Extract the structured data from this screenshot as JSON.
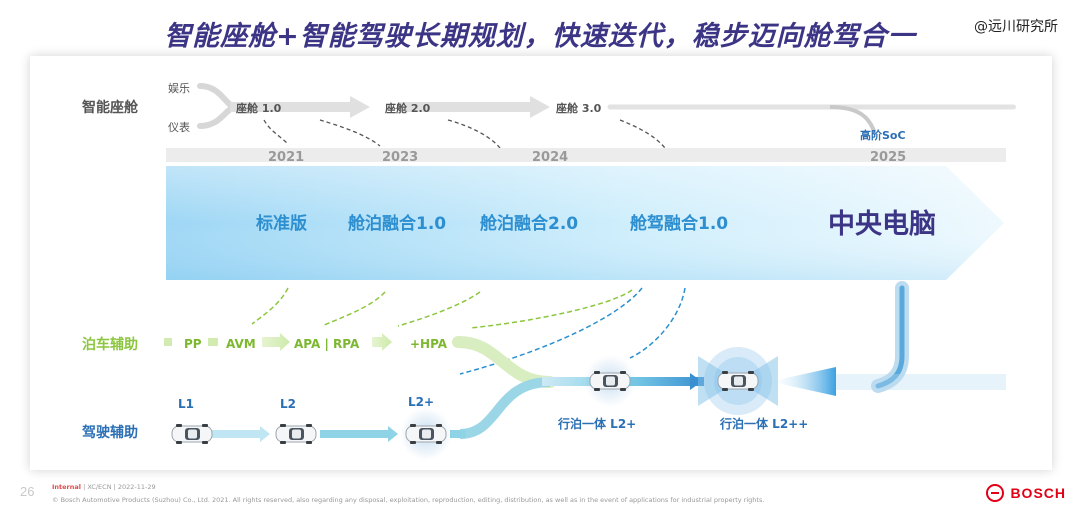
{
  "title": "智能座舱+智能驾驶长期规划，快速迭代，稳步迈向舱驾合一",
  "brand": "@远川研究所",
  "page_number": "26",
  "footer": {
    "classification": "Internal",
    "meta": " | XC/ECN | 2022-11-29",
    "copyright": "© Bosch Automotive Products (Suzhou) Co., Ltd.  2021. All rights reserved, also regarding any disposal, exploitation, reproduction, editing, distribution, as well as in the event of applications for industrial property rights.",
    "logo_text": "BOSCH"
  },
  "colors": {
    "title": "#3c3585",
    "cockpit_label": "#555555",
    "parking": "#8cc63f",
    "driving": "#2b6fb5",
    "band_text": "#2d8fd0",
    "central": "#3c3585"
  },
  "cockpit": {
    "row_label": "智能座舱",
    "inputs": [
      "娱乐",
      "仪表"
    ],
    "stages": [
      "座舱 1.0",
      "座舱 2.0",
      "座舱 3.0"
    ],
    "end_label": "高阶SoC"
  },
  "timeline": {
    "years": [
      "2021",
      "2023",
      "2024",
      "2025"
    ]
  },
  "band": {
    "stages": [
      "标准版",
      "舱泊融合1.0",
      "舱泊融合2.0",
      "舱驾融合1.0"
    ],
    "final": "中央电脑"
  },
  "parking": {
    "row_label": "泊车辅助",
    "stages": [
      "PP",
      "AVM",
      "APA | RPA",
      "+HPA"
    ]
  },
  "driving": {
    "row_label": "驾驶辅助",
    "levels": [
      "L1",
      "L2",
      "L2+"
    ],
    "merged": [
      "行泊一体 L2+",
      "行泊一体 L2++"
    ]
  }
}
